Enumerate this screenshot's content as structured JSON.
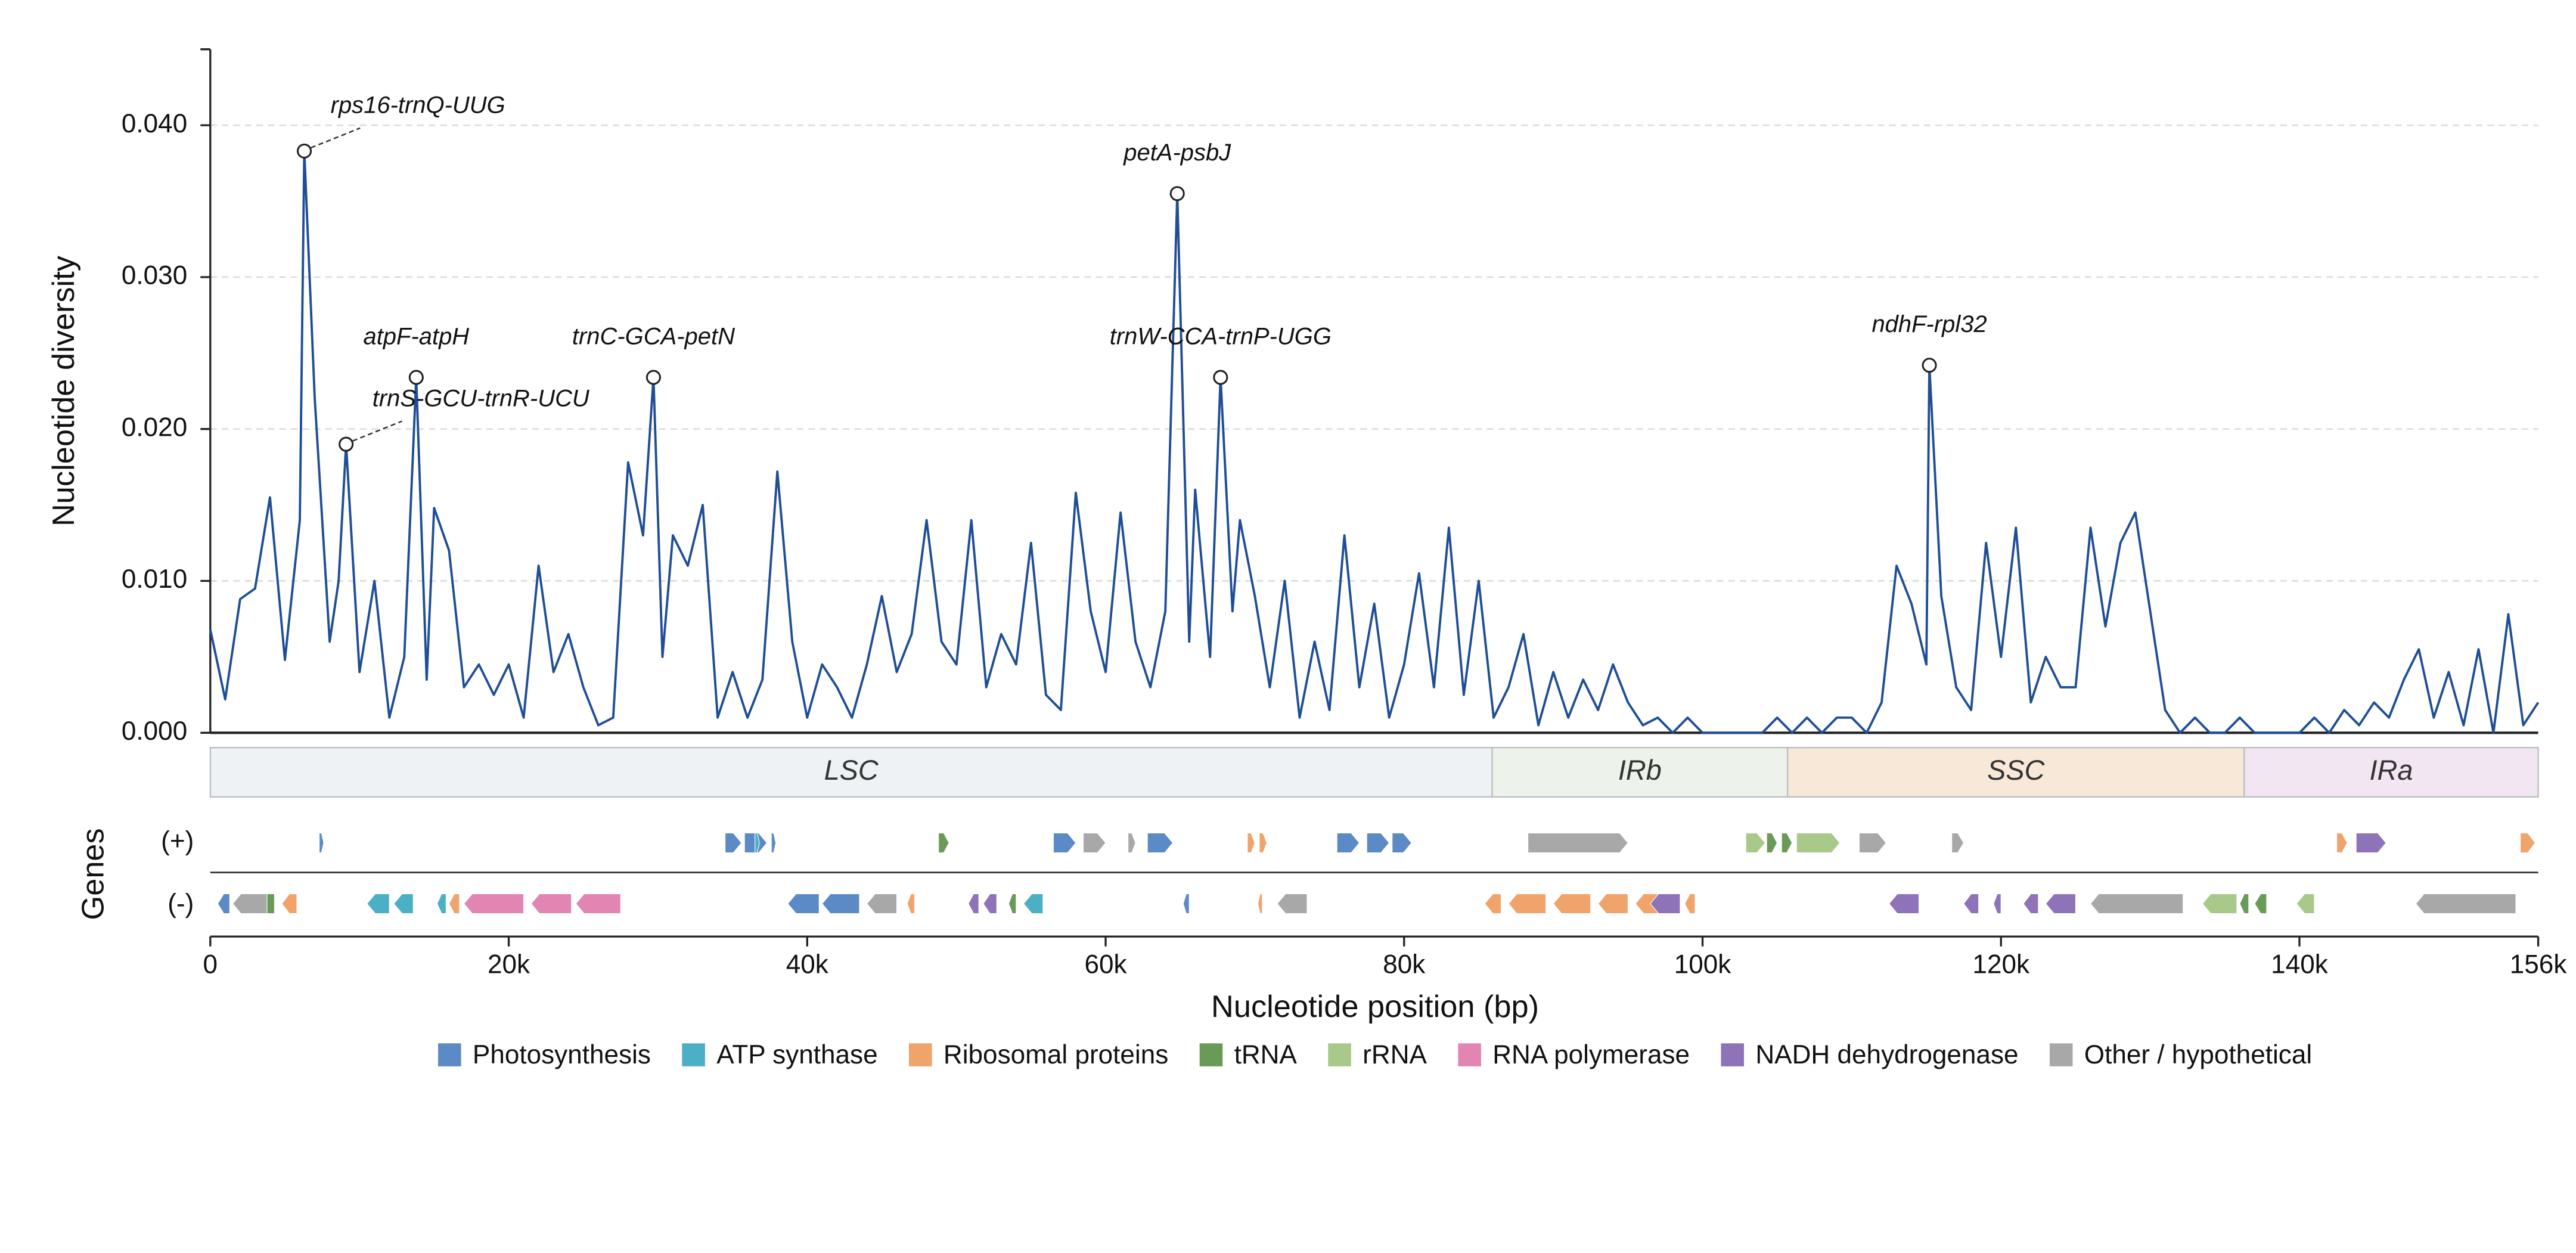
{
  "chart_data": {
    "type": "line",
    "y_label": "Nucleotide diversity",
    "x_label": "Nucleotide position (bp)",
    "color": "#1f4e96",
    "xlim": [
      0,
      156000
    ],
    "ylim": [
      0,
      0.045
    ],
    "xticks": [
      0,
      {
        "value": 20000,
        "label": "20k"
      },
      {
        "value": 40000,
        "label": "40k"
      },
      {
        "value": 60000,
        "label": "60k"
      },
      {
        "value": 80000,
        "label": "80k"
      },
      {
        "value": 100000,
        "label": "100k"
      },
      {
        "value": 120000,
        "label": "120k"
      },
      {
        "value": 140000,
        "label": "140k"
      },
      {
        "value": 156000,
        "label": "156k"
      }
    ],
    "yticks": [
      {
        "value": 0,
        "label": "0.000"
      },
      {
        "value": 0.01,
        "label": "0.010"
      },
      {
        "value": 0.02,
        "label": "0.020"
      },
      {
        "value": 0.03,
        "label": "0.030"
      },
      {
        "value": 0.04,
        "label": "0.040"
      }
    ],
    "grid": true,
    "x": [
      0,
      1000,
      2000,
      3000,
      4000,
      5000,
      6000,
      6300,
      7000,
      8000,
      8600,
      9100,
      10000,
      11000,
      12000,
      13000,
      13800,
      14500,
      15000,
      16000,
      17000,
      18000,
      19000,
      20000,
      21000,
      22000,
      23000,
      24000,
      25000,
      26000,
      27000,
      28000,
      29000,
      29700,
      30300,
      31000,
      32000,
      33000,
      34000,
      35000,
      36000,
      37000,
      38000,
      39000,
      40000,
      41000,
      42000,
      43000,
      44000,
      45000,
      46000,
      47000,
      48000,
      49000,
      50000,
      51000,
      52000,
      53000,
      54000,
      55000,
      56000,
      57000,
      58000,
      59000,
      60000,
      61000,
      62000,
      63000,
      64000,
      64800,
      65600,
      66000,
      67000,
      67700,
      68500,
      69000,
      70000,
      71000,
      72000,
      73000,
      74000,
      75000,
      76000,
      77000,
      78000,
      79000,
      80000,
      81000,
      82000,
      83000,
      84000,
      85000,
      86000,
      87000,
      88000,
      89000,
      90000,
      91000,
      92000,
      93000,
      94000,
      95000,
      96000,
      97000,
      98000,
      99000,
      100000,
      101000,
      102000,
      103000,
      104000,
      105000,
      106000,
      107000,
      108000,
      109000,
      110000,
      111000,
      112000,
      113000,
      114000,
      115000,
      115200,
      116000,
      117000,
      118000,
      119000,
      120000,
      121000,
      122000,
      123000,
      124000,
      125000,
      126000,
      127000,
      128000,
      129000,
      130000,
      131000,
      132000,
      133000,
      134000,
      135000,
      136000,
      137000,
      138000,
      139000,
      140000,
      141000,
      142000,
      143000,
      144000,
      145000,
      146000,
      147000,
      148000,
      149000,
      150000,
      151000,
      152000,
      153000,
      154000,
      155000,
      156000
    ],
    "values": [
      0.0068,
      0.0022,
      0.0088,
      0.0095,
      0.0155,
      0.0048,
      0.014,
      0.0383,
      0.022,
      0.006,
      0.01,
      0.019,
      0.004,
      0.01,
      0.001,
      0.005,
      0.0234,
      0.0035,
      0.0148,
      0.012,
      0.003,
      0.0045,
      0.0025,
      0.0045,
      0.001,
      0.011,
      0.004,
      0.0065,
      0.003,
      0.0005,
      0.001,
      0.0178,
      0.013,
      0.0234,
      0.005,
      0.013,
      0.011,
      0.015,
      0.001,
      0.004,
      0.001,
      0.0035,
      0.0172,
      0.006,
      0.001,
      0.0045,
      0.003,
      0.001,
      0.0045,
      0.009,
      0.004,
      0.0065,
      0.014,
      0.006,
      0.0045,
      0.014,
      0.003,
      0.0065,
      0.0045,
      0.0125,
      0.0025,
      0.0015,
      0.0158,
      0.008,
      0.004,
      0.0145,
      0.006,
      0.003,
      0.008,
      0.0355,
      0.006,
      0.016,
      0.005,
      0.0234,
      0.008,
      0.014,
      0.009,
      0.003,
      0.01,
      0.001,
      0.006,
      0.0015,
      0.013,
      0.003,
      0.0085,
      0.001,
      0.0045,
      0.0105,
      0.003,
      0.0135,
      0.0025,
      0.01,
      0.001,
      0.003,
      0.0065,
      0.0005,
      0.004,
      0.001,
      0.0035,
      0.0015,
      0.0045,
      0.002,
      0.0005,
      0.001,
      0,
      0.001,
      0,
      0,
      0,
      0,
      0,
      0.001,
      0,
      0.001,
      0,
      0.001,
      0.001,
      0,
      0.002,
      0.011,
      0.0085,
      0.0045,
      0.0242,
      0.009,
      0.003,
      0.0015,
      0.0125,
      0.005,
      0.0135,
      0.002,
      0.005,
      0.003,
      0.003,
      0.0135,
      0.007,
      0.0125,
      0.0145,
      0.008,
      0.0015,
      0,
      0.001,
      0,
      0,
      0.001,
      0,
      0,
      0,
      0,
      0.001,
      0,
      0.0015,
      0.0005,
      0.002,
      0.001,
      0.0035,
      0.0055,
      0.001,
      0.004,
      0.0005,
      0.0055,
      0,
      0.0078,
      0.0005,
      0.002
    ],
    "annotations": [
      {
        "text": "rps16-trnQ-UUG",
        "x": 6300,
        "y": 0.0383,
        "leader": true
      },
      {
        "text": "trnS-GCU-trnR-UCU",
        "x": 9100,
        "y": 0.019,
        "leader": true
      },
      {
        "text": "atpF-atpH",
        "x": 13800,
        "y": 0.0234,
        "leader": false
      },
      {
        "text": "trnC-GCA-petN",
        "x": 29700,
        "y": 0.0234,
        "leader": false
      },
      {
        "text": "petA-psbJ",
        "x": 64800,
        "y": 0.0355,
        "leader": false
      },
      {
        "text": "trnW-CCA-trnP-UGG",
        "x": 67700,
        "y": 0.0234,
        "leader": false
      },
      {
        "text": "ndhF-rpl32",
        "x": 115200,
        "y": 0.0242,
        "leader": false
      }
    ],
    "regions": [
      {
        "name": "LSC",
        "start": 0,
        "end": 85900,
        "color": "#eef2f5"
      },
      {
        "name": "IRb",
        "start": 85900,
        "end": 105700,
        "color": "#edf3ea"
      },
      {
        "name": "SSC",
        "start": 105700,
        "end": 136300,
        "color": "#f8e8d8"
      },
      {
        "name": "IRa",
        "start": 136300,
        "end": 156000,
        "color": "#f1e6f1"
      }
    ],
    "gene_track_label": "Genes",
    "strand_labels": [
      "(+)",
      "(-)"
    ],
    "gene_groups": [
      {
        "name": "Photosynthesis",
        "color": "#5b8ac6",
        "plus": [
          [
            7300,
            7600
          ],
          [
            34500,
            35600
          ],
          [
            35800,
            37300
          ],
          [
            37600,
            37900
          ],
          [
            56500,
            58000
          ],
          [
            62800,
            64500
          ],
          [
            75500,
            77000
          ],
          [
            77500,
            79000
          ],
          [
            79200,
            80500
          ]
        ],
        "minus": [
          [
            500,
            1300
          ],
          [
            38700,
            40800
          ],
          [
            41000,
            43500
          ],
          [
            65200,
            65600
          ]
        ]
      },
      {
        "name": "ATP synthase",
        "color": "#4bb0c6",
        "plus": [
          [
            36500,
            36800
          ]
        ],
        "minus": [
          [
            10500,
            12000
          ],
          [
            12300,
            13600
          ],
          [
            15200,
            15800
          ],
          [
            54500,
            55800
          ]
        ]
      },
      {
        "name": "Ribosomal proteins",
        "color": "#f0a46b",
        "plus": [
          [
            69500,
            70000
          ],
          [
            70300,
            70800
          ],
          [
            142500,
            143200
          ],
          [
            154800,
            155800
          ]
        ],
        "minus": [
          [
            4800,
            5800
          ],
          [
            16000,
            16700
          ],
          [
            46700,
            47200
          ],
          [
            70200,
            70500
          ],
          [
            85400,
            86500
          ],
          [
            87000,
            89500
          ],
          [
            90000,
            92500
          ],
          [
            93000,
            95000
          ],
          [
            95500,
            97000
          ],
          [
            97800,
            98300
          ],
          [
            98800,
            99500
          ]
        ]
      },
      {
        "name": "tRNA",
        "color": "#6a9a58",
        "plus": [
          [
            48800,
            49500
          ],
          [
            104300,
            105000
          ],
          [
            105300,
            106000
          ]
        ],
        "minus": [
          [
            1800,
            2500
          ],
          [
            3300,
            4300
          ],
          [
            53500,
            54000
          ],
          [
            136000,
            136600
          ],
          [
            137000,
            137800
          ]
        ]
      },
      {
        "name": "rRNA",
        "color": "#a8c98a",
        "plus": [
          [
            102900,
            104200
          ],
          [
            106300,
            109200
          ]
        ],
        "minus": [
          [
            133500,
            135800
          ],
          [
            139800,
            141000
          ]
        ]
      },
      {
        "name": "RNA polymerase",
        "color": "#e285b3",
        "plus": [],
        "minus": [
          [
            17000,
            21000
          ],
          [
            21500,
            24200
          ],
          [
            24500,
            27500
          ]
        ]
      },
      {
        "name": "NADH dehydrogenase",
        "color": "#8e73b8",
        "plus": [
          [
            143800,
            145800
          ]
        ],
        "minus": [
          [
            50800,
            51500
          ],
          [
            51800,
            52700
          ],
          [
            96500,
            98500
          ],
          [
            112500,
            114500
          ],
          [
            117500,
            118500
          ],
          [
            119500,
            120000
          ],
          [
            121500,
            122500
          ],
          [
            123000,
            125000
          ]
        ]
      },
      {
        "name": "Other / hypothetical",
        "color": "#a8a8a8",
        "plus": [
          [
            58500,
            60000
          ],
          [
            61500,
            62000
          ],
          [
            88300,
            95000
          ],
          [
            110500,
            112300
          ],
          [
            116700,
            117500
          ]
        ],
        "minus": [
          [
            1500,
            3800
          ],
          [
            44000,
            46000
          ],
          [
            71500,
            73500
          ],
          [
            126000,
            132200
          ],
          [
            147800,
            154500
          ]
        ]
      }
    ]
  }
}
